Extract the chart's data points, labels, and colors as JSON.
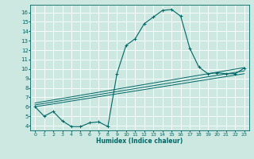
{
  "xlabel": "Humidex (Indice chaleur)",
  "bg_color": "#cce8e0",
  "line_color": "#006666",
  "grid_color": "#ffffff",
  "xlim": [
    -0.5,
    23.5
  ],
  "ylim": [
    3.5,
    16.8
  ],
  "xticks": [
    0,
    1,
    2,
    3,
    4,
    5,
    6,
    7,
    8,
    9,
    10,
    11,
    12,
    13,
    14,
    15,
    16,
    17,
    18,
    19,
    20,
    21,
    22,
    23
  ],
  "yticks": [
    4,
    5,
    6,
    7,
    8,
    9,
    10,
    11,
    12,
    13,
    14,
    15,
    16
  ],
  "line1_x": [
    0,
    1,
    2,
    3,
    4,
    5,
    6,
    7,
    8,
    9,
    10,
    11,
    12,
    13,
    14,
    15,
    16,
    17,
    18,
    19,
    20,
    21,
    22,
    23
  ],
  "line1_y": [
    6.0,
    5.0,
    5.5,
    4.5,
    3.9,
    3.9,
    4.3,
    4.4,
    3.9,
    9.5,
    12.5,
    13.2,
    14.8,
    15.5,
    16.2,
    16.3,
    15.6,
    12.2,
    10.2,
    9.5,
    9.6,
    9.5,
    9.5,
    10.1
  ],
  "line2_x": [
    0,
    23
  ],
  "line2_y": [
    6.2,
    9.8
  ],
  "line3_x": [
    0,
    23
  ],
  "line3_y": [
    6.4,
    10.15
  ],
  "line4_x": [
    0,
    23
  ],
  "line4_y": [
    6.0,
    9.5
  ]
}
